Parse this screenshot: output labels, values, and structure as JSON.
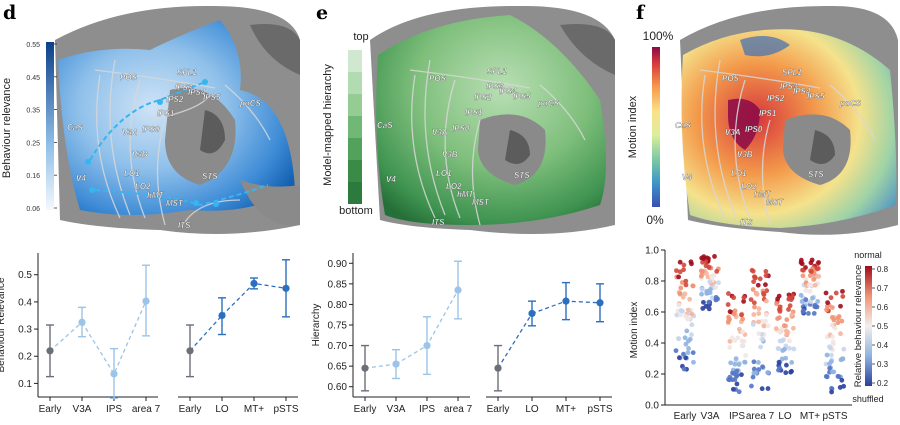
{
  "panels": {
    "d": {
      "label": "d",
      "colorbar": {
        "title": "Behaviour relevance",
        "ticks": [
          "0.55",
          "0.45",
          "0.35",
          "0.25",
          "0.16",
          "0.06"
        ]
      }
    },
    "e": {
      "label": "e",
      "colorbar": {
        "title": "Model-mapped hierarchy",
        "top": "top",
        "bottom": "bottom"
      }
    },
    "f": {
      "label": "f",
      "colorbar": {
        "title": "Motion index",
        "top": "100%",
        "bottom": "0%"
      }
    }
  },
  "brain_labels": [
    "POS",
    "SPL1",
    "IPS3",
    "IPS4",
    "IPS5",
    "IPS2",
    "IPS1",
    "IPS0",
    "poCS",
    "CaS",
    "V3A",
    "V3B",
    "LO1",
    "LO2",
    "STS",
    "hMT",
    "MST",
    "V4",
    "ITS"
  ],
  "colors": {
    "early": "#6b6f78",
    "dorsal": "#9cc3e8",
    "ventral": "#2c6fbf",
    "hier_light": "#cfe8cf",
    "hier_dark": "#2d7a3e"
  },
  "chart_data": [
    {
      "id": "d-dorsal",
      "type": "line",
      "ylabel": "Behaviour Relevance",
      "categories": [
        "Early",
        "V3A",
        "IPS",
        "area 7"
      ],
      "values": [
        0.22,
        0.325,
        0.135,
        0.403
      ],
      "err_low": [
        0.125,
        0.272,
        0.045,
        0.275
      ],
      "err_high": [
        0.315,
        0.38,
        0.228,
        0.535
      ],
      "ylim": [
        0.05,
        0.58
      ],
      "yticks": [
        0.1,
        0.2,
        0.3,
        0.4,
        0.5
      ],
      "ytick_labels": [
        "0.1",
        "0.2",
        "0.3",
        "0.4",
        "0.5"
      ]
    },
    {
      "id": "d-ventral",
      "type": "line",
      "categories": [
        "Early",
        "LO",
        "MT+",
        "pSTS"
      ],
      "values": [
        0.22,
        0.35,
        0.468,
        0.45
      ],
      "err_low": [
        0.125,
        0.28,
        0.448,
        0.345
      ],
      "err_high": [
        0.315,
        0.415,
        0.488,
        0.555
      ],
      "ylim": [
        0.05,
        0.58
      ]
    },
    {
      "id": "e-dorsal",
      "type": "line",
      "ylabel": "Hierarchy",
      "categories": [
        "Early",
        "V3A",
        "IPS",
        "area 7"
      ],
      "values": [
        0.645,
        0.655,
        0.7,
        0.835
      ],
      "err_low": [
        0.59,
        0.62,
        0.63,
        0.765
      ],
      "err_high": [
        0.7,
        0.69,
        0.77,
        0.905
      ],
      "ylim": [
        0.575,
        0.925
      ],
      "yticks": [
        0.6,
        0.65,
        0.7,
        0.75,
        0.8,
        0.85,
        0.9
      ],
      "ytick_labels": [
        "0.60",
        "0.65",
        "0.70",
        "0.75",
        "0.80",
        "0.85",
        "0.90"
      ]
    },
    {
      "id": "e-ventral",
      "type": "line",
      "categories": [
        "Early",
        "LO",
        "MT+",
        "pSTS"
      ],
      "values": [
        0.645,
        0.778,
        0.808,
        0.804
      ],
      "err_low": [
        0.59,
        0.748,
        0.763,
        0.758
      ],
      "err_high": [
        0.7,
        0.808,
        0.853,
        0.85
      ],
      "ylim": [
        0.575,
        0.925
      ]
    },
    {
      "id": "f-motion",
      "type": "scatter",
      "ylabel": "Motion index",
      "categories": [
        "Early",
        "V3A",
        "IPS",
        "area 7",
        "LO",
        "MT+",
        "pSTS"
      ],
      "ranges": [
        [
          0.22,
          0.93
        ],
        [
          0.62,
          0.96
        ],
        [
          0.08,
          0.72
        ],
        [
          0.1,
          0.88
        ],
        [
          0.2,
          0.72
        ],
        [
          0.58,
          0.94
        ],
        [
          0.08,
          0.74
        ]
      ],
      "means": [
        0.55,
        0.82,
        0.35,
        0.45,
        0.45,
        0.8,
        0.47
      ],
      "ylim": [
        0.0,
        1.0
      ],
      "yticks": [
        0.0,
        0.2,
        0.4,
        0.6,
        0.8,
        1.0
      ],
      "ytick_labels": [
        "0.0",
        "0.2",
        "0.4",
        "0.6",
        "0.8",
        "1.0"
      ],
      "colorbar": {
        "title": "Relative behaviour relevance",
        "top": "normal",
        "bottom": "shuffled",
        "ticks": [
          "0.8",
          "0.7",
          "0.6",
          "0.5",
          "0.4",
          "0.3",
          "0.2"
        ]
      }
    }
  ]
}
